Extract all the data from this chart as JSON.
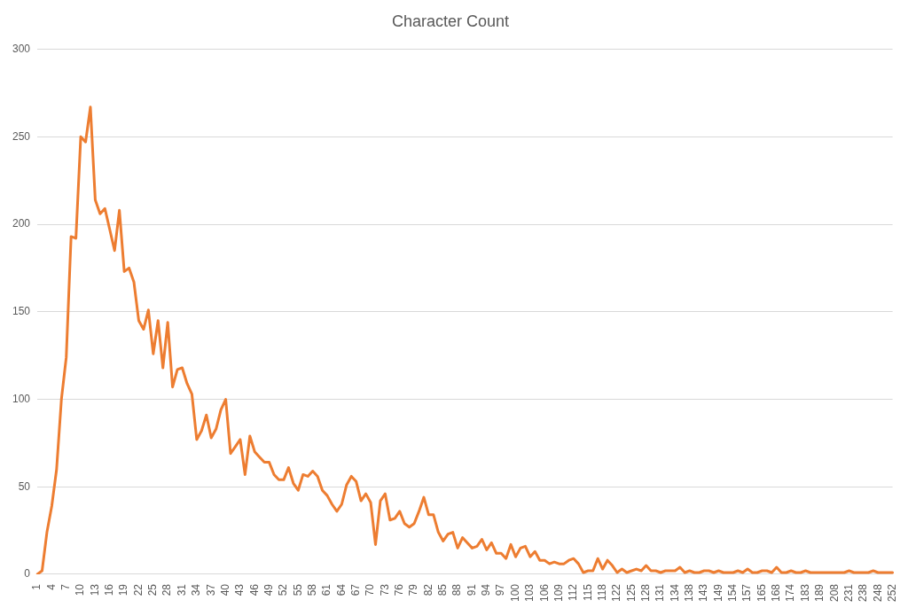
{
  "chart_data": {
    "type": "line",
    "title": "Character Count",
    "categories": [
      "1",
      null,
      null,
      "4",
      null,
      null,
      "7",
      null,
      null,
      "10",
      null,
      null,
      "13",
      null,
      null,
      "16",
      null,
      null,
      "19",
      null,
      null,
      "22",
      null,
      null,
      "25",
      null,
      null,
      "28",
      null,
      null,
      "31",
      null,
      null,
      "34",
      null,
      null,
      "37",
      null,
      null,
      "40",
      null,
      null,
      "43",
      null,
      null,
      "46",
      null,
      null,
      "49",
      null,
      null,
      "52",
      null,
      null,
      "55",
      null,
      null,
      "58",
      null,
      null,
      "61",
      null,
      null,
      "64",
      null,
      null,
      "67",
      null,
      null,
      "70",
      null,
      null,
      "73",
      null,
      null,
      "76",
      null,
      null,
      "79",
      null,
      null,
      "82",
      null,
      null,
      "85",
      null,
      null,
      "88",
      null,
      null,
      "91",
      null,
      null,
      "94",
      null,
      null,
      "97",
      null,
      null,
      "100",
      null,
      null,
      "103",
      null,
      null,
      "106",
      null,
      null,
      "109",
      null,
      null,
      "112",
      null,
      null,
      "115",
      null,
      null,
      "118",
      null,
      null,
      "122",
      null,
      null,
      "125",
      null,
      null,
      "128",
      null,
      null,
      "131",
      null,
      null,
      "134",
      null,
      null,
      "138",
      null,
      null,
      "143",
      null,
      null,
      "149",
      null,
      null,
      "154",
      null,
      null,
      "157",
      null,
      null,
      "165",
      null,
      null,
      "168",
      null,
      null,
      "174",
      null,
      null,
      "183",
      null,
      null,
      "189",
      null,
      null,
      "208",
      null,
      null,
      "231",
      null,
      null,
      "238",
      null,
      null,
      "248",
      null,
      null,
      "252"
    ],
    "series": [
      {
        "color": "#ed7d31",
        "values": [
          0,
          2,
          24,
          39,
          60,
          100,
          124,
          193,
          192,
          250,
          247,
          267,
          214,
          206,
          209,
          197,
          185,
          208,
          173,
          175,
          167,
          145,
          140,
          151,
          126,
          145,
          118,
          144,
          107,
          117,
          118,
          109,
          103,
          77,
          82,
          91,
          78,
          83,
          94,
          100,
          69,
          73,
          77,
          57,
          79,
          70,
          67,
          64,
          64,
          57,
          54,
          54,
          61,
          52,
          48,
          57,
          56,
          59,
          56,
          48,
          45,
          40,
          36,
          40,
          51,
          56,
          53,
          42,
          46,
          41,
          17,
          42,
          46,
          31,
          32,
          36,
          29,
          27,
          29,
          36,
          44,
          34,
          34,
          24,
          19,
          23,
          24,
          15,
          21,
          18,
          15,
          16,
          20,
          14,
          18,
          12,
          12,
          9,
          17,
          10,
          15,
          16,
          10,
          13,
          8,
          8,
          6,
          7,
          6,
          6,
          8,
          9,
          6,
          1,
          2,
          2,
          9,
          3,
          8,
          5,
          1,
          3,
          1,
          2,
          3,
          2,
          5,
          2,
          2,
          1,
          2,
          2,
          2,
          4,
          1,
          2,
          1,
          1,
          2,
          2,
          1,
          2,
          1,
          1,
          1,
          2,
          1,
          3,
          1,
          1,
          2,
          2,
          1,
          4,
          1,
          1,
          2,
          1,
          1,
          2,
          1,
          1,
          1,
          1,
          1,
          1,
          1,
          1,
          2,
          1,
          1,
          1,
          1,
          2,
          1,
          1,
          1,
          1
        ]
      }
    ],
    "ylim": [
      0,
      300
    ],
    "yticks": [
      0,
      50,
      100,
      150,
      200,
      250,
      300
    ],
    "grid": "y",
    "legend": false,
    "marker": "none",
    "line_style": "solid"
  }
}
